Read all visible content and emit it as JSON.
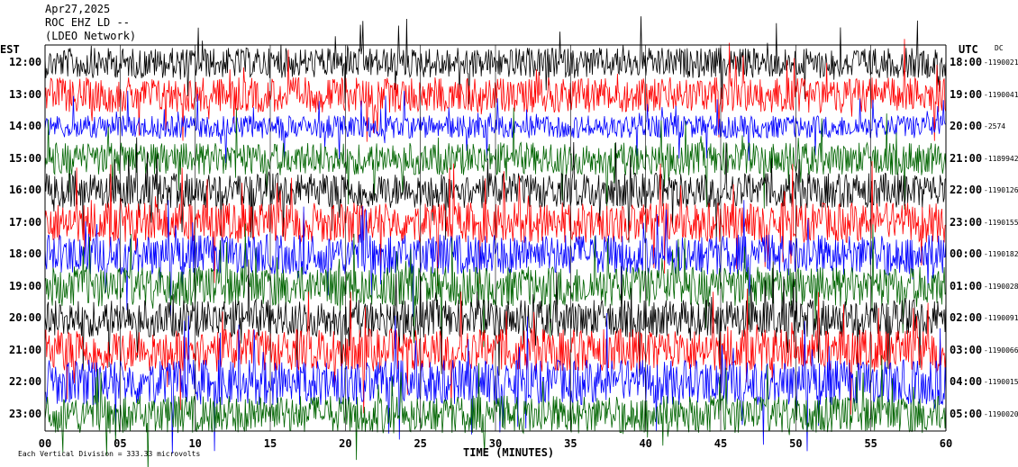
{
  "header": {
    "date": "Apr27,2025",
    "station": "ROC EHZ LD --",
    "network": "(LDEO Network)"
  },
  "axis": {
    "left_title": "EST",
    "right_title": "UTC",
    "dc_title": "DC",
    "xlabel": "TIME (MINUTES)",
    "footnote": "Each Vertical Division = 333.33 microvolts"
  },
  "chart_data": {
    "type": "line",
    "title": "",
    "xlabel": "TIME (MINUTES)",
    "ylabel": "",
    "xlim": [
      0,
      60
    ],
    "x_ticks": [
      "00",
      "05",
      "10",
      "15",
      "20",
      "25",
      "30",
      "35",
      "40",
      "45",
      "50",
      "55",
      "60"
    ],
    "rows": [
      {
        "est": "12:00",
        "utc": "18:00",
        "dc": "-1190021",
        "color": "#000000",
        "amp": 1.2
      },
      {
        "est": "13:00",
        "utc": "19:00",
        "dc": "-1190041",
        "color": "#ff0000",
        "amp": 1.4
      },
      {
        "est": "14:00",
        "utc": "20:00",
        "dc": "-2574",
        "color": "#0000ff",
        "amp": 0.9
      },
      {
        "est": "15:00",
        "utc": "21:00",
        "dc": "-1189942",
        "color": "#006400",
        "amp": 1.3
      },
      {
        "est": "16:00",
        "utc": "22:00",
        "dc": "-1190126",
        "color": "#000000",
        "amp": 1.4
      },
      {
        "est": "17:00",
        "utc": "23:00",
        "dc": "-1190155",
        "color": "#ff0000",
        "amp": 1.6
      },
      {
        "est": "18:00",
        "utc": "00:00",
        "dc": "-1190182",
        "color": "#0000ff",
        "amp": 1.6
      },
      {
        "est": "19:00",
        "utc": "01:00",
        "dc": "-1190028",
        "color": "#006400",
        "amp": 1.6
      },
      {
        "est": "20:00",
        "utc": "02:00",
        "dc": "-1190091",
        "color": "#000000",
        "amp": 1.5
      },
      {
        "est": "21:00",
        "utc": "03:00",
        "dc": "-1190066",
        "color": "#ff0000",
        "amp": 1.7
      },
      {
        "est": "22:00",
        "utc": "04:00",
        "dc": "-1190015",
        "color": "#0000ff",
        "amp": 1.8
      },
      {
        "est": "23:00",
        "utc": "05:00",
        "dc": "-1190020",
        "color": "#006400",
        "amp": 1.5
      }
    ]
  }
}
